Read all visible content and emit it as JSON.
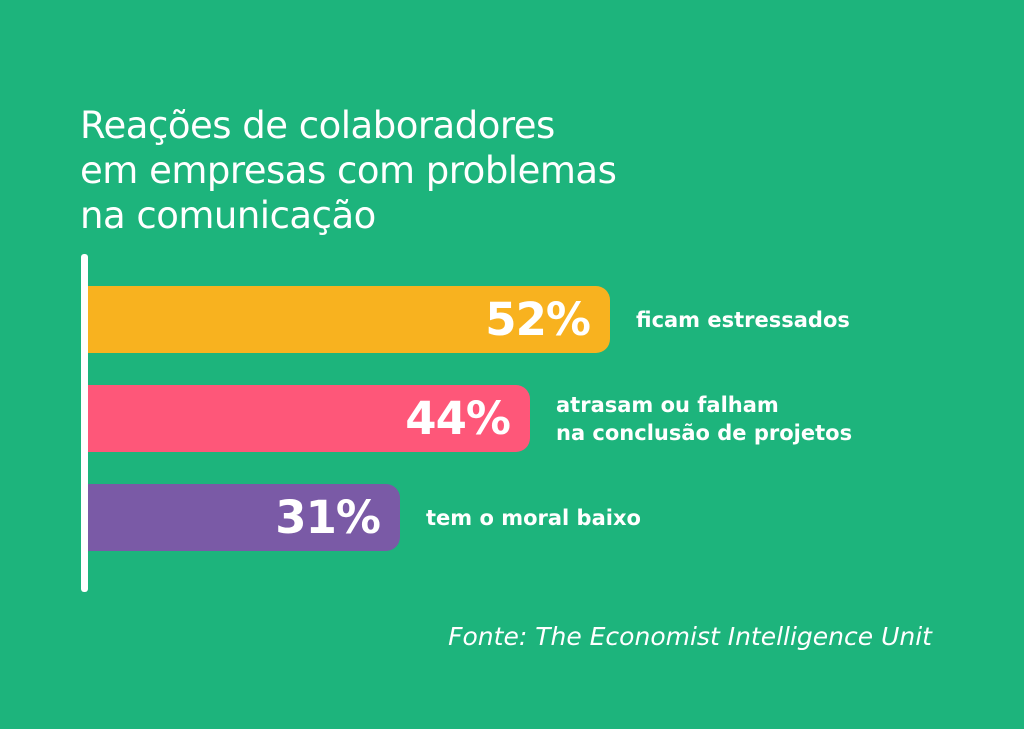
{
  "title_lines": [
    "Reações de colaboradores",
    "em empresas com problemas",
    "na comunicação"
  ],
  "source": "Fonte: The Economist Intelligence Unit",
  "colors": {
    "background": "#1db47c",
    "axis": "#ffffff",
    "bars": [
      "#f8b21f",
      "#fe5779",
      "#7a5aa6"
    ]
  },
  "chart_data": {
    "type": "bar",
    "orientation": "horizontal",
    "categories": [
      [
        "ficam estressados"
      ],
      [
        "atrasam ou falham",
        "na conclusão de projetos"
      ],
      [
        "tem o moral baixo"
      ]
    ],
    "values": [
      52,
      44,
      31
    ],
    "value_labels": [
      "52%",
      "44%",
      "31%"
    ],
    "xlim": [
      0,
      100
    ],
    "grid": false,
    "legend": "none"
  }
}
